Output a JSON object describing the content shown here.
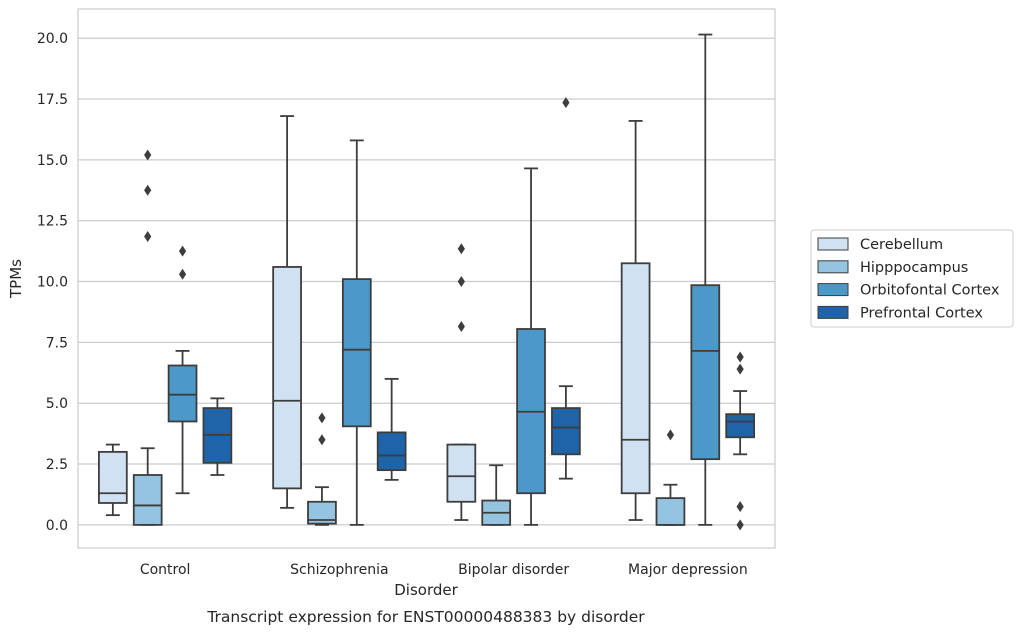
{
  "chart_data": {
    "type": "box",
    "caption": "Transcript expression for ENST00000488383 by disorder",
    "xlabel": "Disorder",
    "ylabel": "TPMs",
    "ylim": [
      -0.95,
      21.2
    ],
    "yticks": [
      0.0,
      2.5,
      5.0,
      7.5,
      10.0,
      12.5,
      15.0,
      17.5,
      20.0
    ],
    "ytick_labels": [
      "0.0",
      "2.5",
      "5.0",
      "7.5",
      "10.0",
      "12.5",
      "15.0",
      "17.5",
      "20.0"
    ],
    "grid": "horizontal",
    "legend_position": "right",
    "categories": [
      "Control",
      "Schizophrenia",
      "Bipolar disorder",
      "Major depression"
    ],
    "series": [
      {
        "name": "Cerebellum",
        "color": "#d0e1f2",
        "boxes": [
          {
            "whislo": 0.4,
            "q1": 0.9,
            "med": 1.3,
            "q3": 3.0,
            "whishi": 3.3,
            "fliers": []
          },
          {
            "whislo": 0.7,
            "q1": 1.5,
            "med": 5.1,
            "q3": 10.6,
            "whishi": 16.8,
            "fliers": []
          },
          {
            "whislo": 0.2,
            "q1": 0.95,
            "med": 2.0,
            "q3": 3.3,
            "whishi": 3.3,
            "fliers": [
              8.15,
              10.0,
              11.35
            ]
          },
          {
            "whislo": 0.2,
            "q1": 1.3,
            "med": 3.5,
            "q3": 10.75,
            "whishi": 16.6,
            "fliers": []
          }
        ]
      },
      {
        "name": "Hipppocampus",
        "color": "#94c4df",
        "boxes": [
          {
            "whislo": 0.0,
            "q1": 0.0,
            "med": 0.8,
            "q3": 2.05,
            "whishi": 3.15,
            "fliers": [
              11.85,
              13.75,
              15.2
            ]
          },
          {
            "whislo": 0.0,
            "q1": 0.05,
            "med": 0.2,
            "q3": 0.95,
            "whishi": 1.55,
            "fliers": [
              3.5,
              4.4
            ]
          },
          {
            "whislo": 0.0,
            "q1": 0.0,
            "med": 0.5,
            "q3": 1.0,
            "whishi": 2.45,
            "fliers": []
          },
          {
            "whislo": 0.0,
            "q1": 0.0,
            "med": 0.0,
            "q3": 1.1,
            "whishi": 1.65,
            "fliers": [
              3.7
            ]
          }
        ]
      },
      {
        "name": "Orbitofontal Cortex",
        "color": "#4b98c9",
        "boxes": [
          {
            "whislo": 1.3,
            "q1": 4.25,
            "med": 5.35,
            "q3": 6.55,
            "whishi": 7.15,
            "fliers": [
              10.3,
              11.25
            ]
          },
          {
            "whislo": 0.0,
            "q1": 4.05,
            "med": 7.2,
            "q3": 10.1,
            "whishi": 15.8,
            "fliers": []
          },
          {
            "whislo": 0.0,
            "q1": 1.3,
            "med": 4.65,
            "q3": 8.05,
            "whishi": 14.65,
            "fliers": []
          },
          {
            "whislo": 0.0,
            "q1": 2.7,
            "med": 7.15,
            "q3": 9.85,
            "whishi": 20.15,
            "fliers": []
          }
        ]
      },
      {
        "name": "Prefrontal Cortex",
        "color": "#1f63a8",
        "boxes": [
          {
            "whislo": 2.05,
            "q1": 2.55,
            "med": 3.7,
            "q3": 4.8,
            "whishi": 5.2,
            "fliers": []
          },
          {
            "whislo": 1.85,
            "q1": 2.25,
            "med": 2.85,
            "q3": 3.8,
            "whishi": 6.0,
            "fliers": []
          },
          {
            "whislo": 1.9,
            "q1": 2.9,
            "med": 4.0,
            "q3": 4.8,
            "whishi": 5.7,
            "fliers": [
              17.35
            ]
          },
          {
            "whislo": 2.9,
            "q1": 3.6,
            "med": 4.25,
            "q3": 4.55,
            "whishi": 5.5,
            "fliers": [
              0.0,
              0.75,
              6.4,
              6.9
            ]
          }
        ]
      }
    ]
  }
}
